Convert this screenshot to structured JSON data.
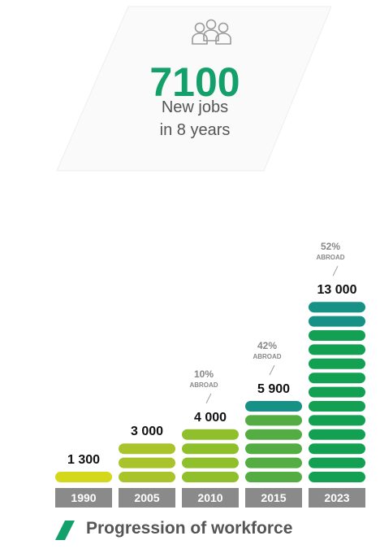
{
  "headline": {
    "value": "7100",
    "line1": "New jobs",
    "line2": "in 8 years",
    "icon": "people-group-icon"
  },
  "footer": {
    "label": "Progression of workforce"
  },
  "chart_data": {
    "type": "bar",
    "categories": [
      "1990",
      "2005",
      "2010",
      "2015",
      "2023"
    ],
    "values": [
      1300,
      3000,
      4000,
      5900,
      13000
    ],
    "value_labels": [
      "1 300",
      "3 000",
      "4 000",
      "5 900",
      "13 000"
    ],
    "abroad_pct": [
      null,
      null,
      "10%",
      "42%",
      "52%"
    ],
    "abroad_label": "ABROAD",
    "title": "",
    "xlabel": "",
    "ylabel": "",
    "colors": {
      "1990": "#d4d81a",
      "2005": "#a8c42a",
      "2010": "#8fbf2a",
      "2015": "#54ad43",
      "2023": "#13a052",
      "abroad": "#179086",
      "year_box": "#8a8a8a"
    }
  }
}
